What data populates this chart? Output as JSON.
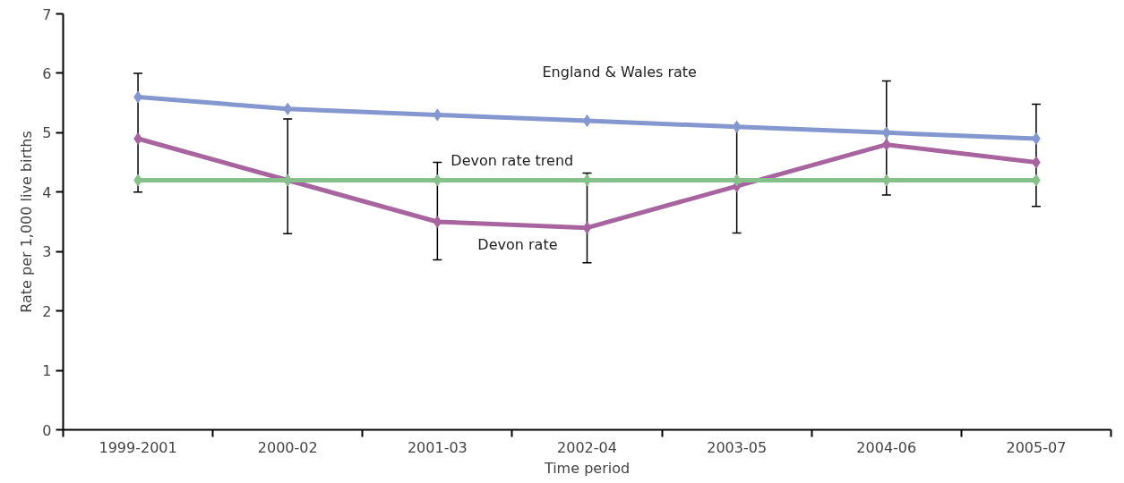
{
  "chart_data": {
    "type": "line",
    "xlabel": "Time period",
    "ylabel": "Rate per 1,000 live births",
    "categories": [
      "1999-2001",
      "2000-02",
      "2001-03",
      "2002-04",
      "2003-05",
      "2004-06",
      "2005-07"
    ],
    "series": [
      {
        "color": "#8497cf",
        "values": [
          5.6,
          5.4,
          5.3,
          5.2,
          5.1,
          5.0,
          4.9
        ]
      },
      {
        "color": "#a8649e",
        "values": [
          4.9,
          4.2,
          3.5,
          3.4,
          4.1,
          4.8,
          4.5
        ],
        "errors": [
          [
            4.0,
            6.0
          ],
          [
            3.3,
            5.23
          ],
          [
            2.86,
            4.5
          ],
          [
            2.81,
            4.32
          ],
          [
            3.31,
            5.09
          ],
          [
            3.95,
            5.87
          ],
          [
            3.76,
            5.48
          ]
        ]
      },
      {
        "color": "#86c08a",
        "values": [
          4.2,
          4.2,
          4.2,
          4.2,
          4.2,
          4.2,
          4.2
        ]
      }
    ],
    "annotations": [
      {
        "text": "England & Wales rate",
        "x": "2002-04",
        "y": 5.2
      },
      {
        "text": "Devon rate trend",
        "x": "2001-03",
        "y": 4.2
      },
      {
        "text": "Devon rate",
        "x": "2001-03",
        "y": 3.5
      }
    ],
    "ylim": [
      0,
      7
    ],
    "yticks": [
      0,
      1,
      2,
      3,
      4,
      5,
      6,
      7
    ],
    "grid": false,
    "marker": "diamond",
    "line_style": "solid"
  }
}
